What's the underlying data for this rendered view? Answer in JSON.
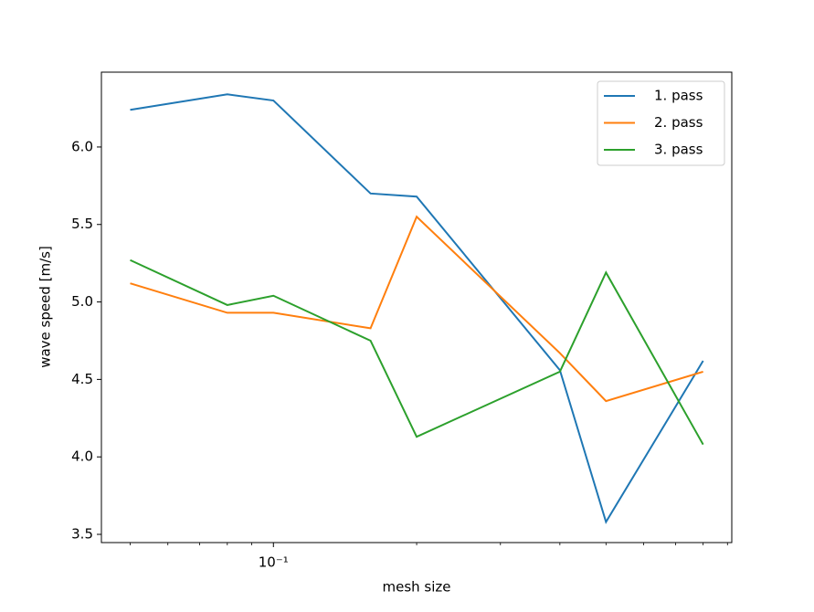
{
  "chart_data": {
    "type": "line",
    "x_label": "mesh size",
    "y_label": "wave speed [m/s]",
    "x": [
      0.05,
      0.08,
      0.1,
      0.16,
      0.2,
      0.4,
      0.5,
      0.8
    ],
    "series": [
      {
        "name": "1. pass",
        "color": "#1f77b4",
        "values": [
          6.24,
          6.34,
          6.3,
          5.7,
          5.68,
          4.56,
          3.58,
          4.62
        ]
      },
      {
        "name": "2. pass",
        "color": "#ff7f0e",
        "values": [
          5.12,
          4.93,
          4.93,
          4.83,
          5.55,
          4.67,
          4.36,
          4.55
        ]
      },
      {
        "name": "3. pass",
        "color": "#2ca02c",
        "values": [
          5.27,
          4.98,
          5.04,
          4.75,
          4.13,
          4.55,
          5.19,
          4.08
        ]
      }
    ],
    "xscale": "log",
    "xlim": [
      0.0435,
      0.919
    ],
    "xticks": [
      {
        "value": 0.1,
        "label": "10⁻¹"
      }
    ],
    "x_minor_ticks": [
      0.05,
      0.06,
      0.07,
      0.08,
      0.09,
      0.2,
      0.3,
      0.4,
      0.5,
      0.6,
      0.7,
      0.8,
      0.9
    ],
    "ylim": [
      3.447,
      6.483
    ],
    "yticks": [
      3.5,
      {
        "value": 4,
        "label": "4.0"
      },
      4.5,
      {
        "value": 5,
        "label": "5.0"
      },
      5.5,
      {
        "value": 6,
        "label": "6.0"
      }
    ],
    "grid": false,
    "legend": "upper right"
  }
}
